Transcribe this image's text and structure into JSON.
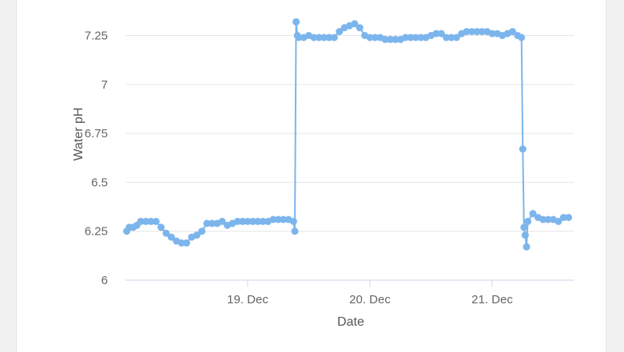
{
  "chart_data": {
    "type": "line",
    "xlabel": "Date",
    "ylabel": "Water pH",
    "x_tick_labels": [
      "19. Dec",
      "20. Dec",
      "21. Dec"
    ],
    "x_ticks": [
      "2023-12-19",
      "2023-12-20",
      "2023-12-21"
    ],
    "y_ticks": [
      "6",
      "6.25",
      "6.5",
      "6.75",
      "7",
      "7.25"
    ],
    "ylim": [
      6,
      7.35
    ],
    "xlim": [
      "2023-12-18 00:00",
      "2023-12-21 16:00"
    ],
    "grid": true,
    "color": "#7cb5ec",
    "series": [
      {
        "x": [
          "2023-12-18 00:15",
          "2023-12-18 00:45",
          "2023-12-18 01:30",
          "2023-12-18 02:15",
          "2023-12-18 03:00",
          "2023-12-18 04:00",
          "2023-12-18 05:00",
          "2023-12-18 06:00",
          "2023-12-18 07:00",
          "2023-12-18 08:00",
          "2023-12-18 09:00",
          "2023-12-18 10:00",
          "2023-12-18 11:00",
          "2023-12-18 12:00",
          "2023-12-18 13:00",
          "2023-12-18 14:00",
          "2023-12-18 15:00",
          "2023-12-18 16:00",
          "2023-12-18 17:00",
          "2023-12-18 18:00",
          "2023-12-18 19:00",
          "2023-12-18 20:00",
          "2023-12-18 21:00",
          "2023-12-18 22:00",
          "2023-12-18 23:00",
          "2023-12-19 00:00",
          "2023-12-19 01:00",
          "2023-12-19 02:00",
          "2023-12-19 03:00",
          "2023-12-19 04:00",
          "2023-12-19 05:00",
          "2023-12-19 06:00",
          "2023-12-19 07:00",
          "2023-12-19 08:00",
          "2023-12-19 09:00",
          "2023-12-19 09:15",
          "2023-12-19 09:30",
          "2023-12-19 09:45",
          "2023-12-19 10:00",
          "2023-12-19 11:00",
          "2023-12-19 12:00",
          "2023-12-19 13:00",
          "2023-12-19 14:00",
          "2023-12-19 15:00",
          "2023-12-19 16:00",
          "2023-12-19 17:00",
          "2023-12-19 18:00",
          "2023-12-19 19:00",
          "2023-12-19 20:00",
          "2023-12-19 21:00",
          "2023-12-19 22:00",
          "2023-12-19 23:00",
          "2023-12-20 00:00",
          "2023-12-20 01:00",
          "2023-12-20 02:00",
          "2023-12-20 03:00",
          "2023-12-20 04:00",
          "2023-12-20 05:00",
          "2023-12-20 06:00",
          "2023-12-20 07:00",
          "2023-12-20 08:00",
          "2023-12-20 09:00",
          "2023-12-20 10:00",
          "2023-12-20 11:00",
          "2023-12-20 12:00",
          "2023-12-20 13:00",
          "2023-12-20 14:00",
          "2023-12-20 15:00",
          "2023-12-20 16:00",
          "2023-12-20 17:00",
          "2023-12-20 18:00",
          "2023-12-20 19:00",
          "2023-12-20 20:00",
          "2023-12-20 21:00",
          "2023-12-20 22:00",
          "2023-12-20 23:00",
          "2023-12-21 00:00",
          "2023-12-21 01:00",
          "2023-12-21 02:00",
          "2023-12-21 03:00",
          "2023-12-21 04:00",
          "2023-12-21 05:00",
          "2023-12-21 05:45",
          "2023-12-21 06:00",
          "2023-12-21 06:15",
          "2023-12-21 06:30",
          "2023-12-21 06:45",
          "2023-12-21 07:00",
          "2023-12-21 08:00",
          "2023-12-21 09:00",
          "2023-12-21 10:00",
          "2023-12-21 11:00",
          "2023-12-21 12:00",
          "2023-12-21 13:00",
          "2023-12-21 14:00",
          "2023-12-21 15:00"
        ],
        "y": [
          6.25,
          6.27,
          6.27,
          6.28,
          6.3,
          6.3,
          6.3,
          6.3,
          6.27,
          6.24,
          6.22,
          6.2,
          6.19,
          6.19,
          6.22,
          6.23,
          6.25,
          6.29,
          6.29,
          6.29,
          6.3,
          6.28,
          6.29,
          6.3,
          6.3,
          6.3,
          6.3,
          6.3,
          6.3,
          6.3,
          6.31,
          6.31,
          6.31,
          6.31,
          6.3,
          6.25,
          7.32,
          7.25,
          7.24,
          7.24,
          7.25,
          7.24,
          7.24,
          7.24,
          7.24,
          7.24,
          7.27,
          7.29,
          7.3,
          7.31,
          7.29,
          7.25,
          7.24,
          7.24,
          7.24,
          7.23,
          7.23,
          7.23,
          7.23,
          7.24,
          7.24,
          7.24,
          7.24,
          7.24,
          7.25,
          7.26,
          7.26,
          7.24,
          7.24,
          7.24,
          7.26,
          7.27,
          7.27,
          7.27,
          7.27,
          7.27,
          7.26,
          7.26,
          7.25,
          7.26,
          7.27,
          7.25,
          7.24,
          6.67,
          6.27,
          6.23,
          6.17,
          6.3,
          6.34,
          6.32,
          6.31,
          6.31,
          6.31,
          6.3,
          6.32,
          6.32
        ]
      }
    ]
  }
}
